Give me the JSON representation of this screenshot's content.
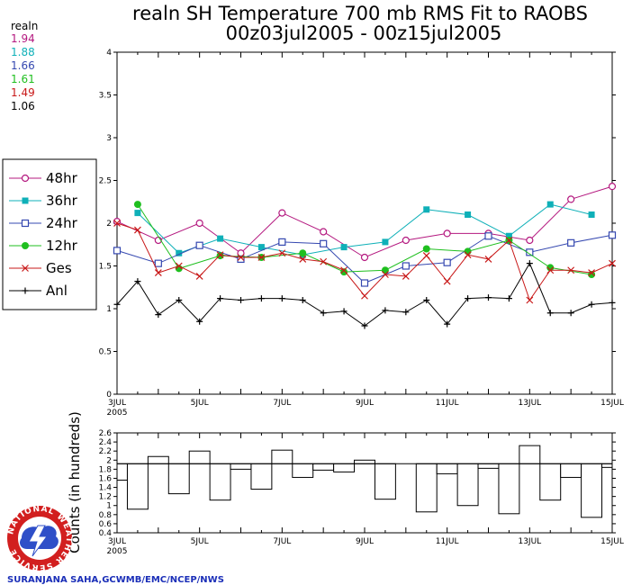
{
  "header": {
    "title_line1": "realn SH Temperature 700 mb RMS Fit to RAOBS",
    "title_line2": "00z03jul2005 - 00z15jul2005"
  },
  "stats_box": {
    "label": "realn",
    "values": [
      {
        "text": "1.94",
        "color": "#b4187f"
      },
      {
        "text": "1.88",
        "color": "#0fb0b8"
      },
      {
        "text": "1.66",
        "color": "#3548b0"
      },
      {
        "text": "1.61",
        "color": "#1fbf1f"
      },
      {
        "text": "1.49",
        "color": "#c81818"
      },
      {
        "text": "1.06",
        "color": "#000000"
      }
    ]
  },
  "credit": "SURANJANA SAHA,GCWMB/EMC/NCEP/NWS",
  "logo": {
    "text": "NATIONAL WEATHER SERVICE"
  },
  "chart_data": [
    {
      "type": "line",
      "title": "realn SH Temperature 700 mb RMS Fit to RAOBS",
      "subtitle": "00z03jul2005 - 00z15jul2005",
      "xlim": [
        3,
        15
      ],
      "ylim": [
        0,
        4
      ],
      "x_ticks": [
        {
          "value": 3,
          "label": "3JUL",
          "sublabel": "2005"
        },
        {
          "value": 5,
          "label": "5JUL"
        },
        {
          "value": 7,
          "label": "7JUL"
        },
        {
          "value": 9,
          "label": "9JUL"
        },
        {
          "value": 11,
          "label": "11JUL"
        },
        {
          "value": 13,
          "label": "13JUL"
        },
        {
          "value": 15,
          "label": "15JUL"
        }
      ],
      "y_ticks": [
        "0",
        "0.5",
        "1",
        "1.5",
        "2",
        "2.5",
        "3",
        "3.5",
        "4"
      ],
      "legend_position": "left",
      "series": [
        {
          "name": "48hr",
          "color": "#b4187f",
          "marker": "open-circle",
          "x": [
            3,
            3.5,
            4,
            4.5,
            5,
            5.5,
            6,
            6.5,
            7,
            7.5,
            8,
            8.5,
            9,
            9.5,
            10,
            10.5,
            11,
            11.5,
            12,
            12.5,
            13,
            13.5,
            14,
            14.5,
            15
          ],
          "values": [
            2.02,
            null,
            1.8,
            null,
            2.0,
            null,
            1.65,
            null,
            2.12,
            null,
            1.9,
            null,
            1.6,
            null,
            1.8,
            null,
            1.88,
            null,
            1.88,
            null,
            1.8,
            null,
            2.28,
            null,
            2.43
          ]
        },
        {
          "name": "36hr",
          "color": "#0fb0b8",
          "marker": "filled-square",
          "x": [
            3,
            3.5,
            4,
            4.5,
            5,
            5.5,
            6,
            6.5,
            7,
            7.5,
            8,
            8.5,
            9,
            9.5,
            10,
            10.5,
            11,
            11.5,
            12,
            12.5,
            13,
            13.5,
            14,
            14.5,
            15
          ],
          "values": [
            null,
            2.12,
            null,
            1.65,
            null,
            1.82,
            null,
            1.72,
            null,
            1.63,
            null,
            1.72,
            null,
            1.78,
            null,
            2.16,
            null,
            2.1,
            null,
            1.85,
            null,
            2.22,
            null,
            2.1,
            null
          ]
        },
        {
          "name": "24hr",
          "color": "#3548b0",
          "marker": "open-square",
          "x": [
            3,
            3.5,
            4,
            4.5,
            5,
            5.5,
            6,
            6.5,
            7,
            7.5,
            8,
            8.5,
            9,
            9.5,
            10,
            10.5,
            11,
            11.5,
            12,
            12.5,
            13,
            13.5,
            14,
            14.5,
            15
          ],
          "values": [
            1.68,
            null,
            1.53,
            null,
            1.74,
            null,
            1.58,
            null,
            1.78,
            null,
            1.76,
            null,
            1.3,
            null,
            1.5,
            null,
            1.54,
            null,
            1.85,
            null,
            1.66,
            null,
            1.77,
            null,
            1.86
          ]
        },
        {
          "name": "12hr",
          "color": "#1fbf1f",
          "marker": "filled-circle",
          "x": [
            3,
            3.5,
            4,
            4.5,
            5,
            5.5,
            6,
            6.5,
            7,
            7.5,
            8,
            8.5,
            9,
            9.5,
            10,
            10.5,
            11,
            11.5,
            12,
            12.5,
            13,
            13.5,
            14,
            14.5,
            15
          ],
          "values": [
            null,
            2.22,
            null,
            1.47,
            null,
            1.62,
            null,
            1.6,
            null,
            1.65,
            null,
            1.43,
            null,
            1.45,
            null,
            1.7,
            null,
            1.67,
            null,
            1.8,
            null,
            1.48,
            null,
            1.4,
            null
          ]
        },
        {
          "name": "Ges",
          "color": "#c81818",
          "marker": "x",
          "x": [
            3,
            3.5,
            4,
            4.5,
            5,
            5.5,
            6,
            6.5,
            7,
            7.5,
            8,
            8.5,
            9,
            9.5,
            10,
            10.5,
            11,
            11.5,
            12,
            12.5,
            13,
            13.5,
            14,
            14.5,
            15
          ],
          "values": [
            2.0,
            1.92,
            1.42,
            1.5,
            1.38,
            1.63,
            1.6,
            1.6,
            1.65,
            1.58,
            1.55,
            1.45,
            1.15,
            1.4,
            1.38,
            1.62,
            1.32,
            1.63,
            1.58,
            1.8,
            1.1,
            1.45,
            1.45,
            1.42,
            1.53
          ]
        },
        {
          "name": "Anl",
          "color": "#000000",
          "marker": "plus",
          "x": [
            3,
            3.5,
            4,
            4.5,
            5,
            5.5,
            6,
            6.5,
            7,
            7.5,
            8,
            8.5,
            9,
            9.5,
            10,
            10.5,
            11,
            11.5,
            12,
            12.5,
            13,
            13.5,
            14,
            14.5,
            15
          ],
          "values": [
            1.05,
            1.32,
            0.93,
            1.1,
            0.85,
            1.12,
            1.1,
            1.12,
            1.12,
            1.1,
            0.95,
            0.97,
            0.8,
            0.98,
            0.96,
            1.1,
            0.82,
            1.12,
            1.13,
            1.12,
            1.53,
            0.95,
            0.95,
            1.05,
            1.07
          ]
        }
      ]
    },
    {
      "type": "bar",
      "ylabel": "Counts (in hundreds)",
      "xlim": [
        3,
        15
      ],
      "ylim": [
        0.4,
        2.6
      ],
      "reference_value": 1.92,
      "x_ticks": [
        {
          "value": 3,
          "label": "3JUL",
          "sublabel": "2005"
        },
        {
          "value": 5,
          "label": "5JUL"
        },
        {
          "value": 7,
          "label": "7JUL"
        },
        {
          "value": 9,
          "label": "9JUL"
        },
        {
          "value": 11,
          "label": "11JUL"
        },
        {
          "value": 13,
          "label": "13JUL"
        },
        {
          "value": 15,
          "label": "15JUL"
        }
      ],
      "y_ticks": [
        "0.4",
        "0.6",
        "0.8",
        "1",
        "1.2",
        "1.4",
        "1.6",
        "1.8",
        "2",
        "2.2",
        "2.4",
        "2.6"
      ],
      "x": [
        3,
        3.5,
        4,
        4.5,
        5,
        5.5,
        6,
        6.5,
        7,
        7.5,
        8,
        8.5,
        9,
        9.5,
        10,
        10.5,
        11,
        11.5,
        12,
        12.5,
        13,
        13.5,
        14,
        14.5,
        15
      ],
      "values": [
        1.56,
        0.92,
        2.08,
        1.26,
        2.2,
        1.12,
        1.8,
        1.36,
        2.22,
        1.62,
        1.78,
        1.74,
        2.0,
        1.14,
        1.92,
        0.86,
        1.7,
        1.0,
        1.82,
        0.82,
        2.32,
        1.12,
        1.62,
        0.74,
        1.84
      ]
    }
  ]
}
